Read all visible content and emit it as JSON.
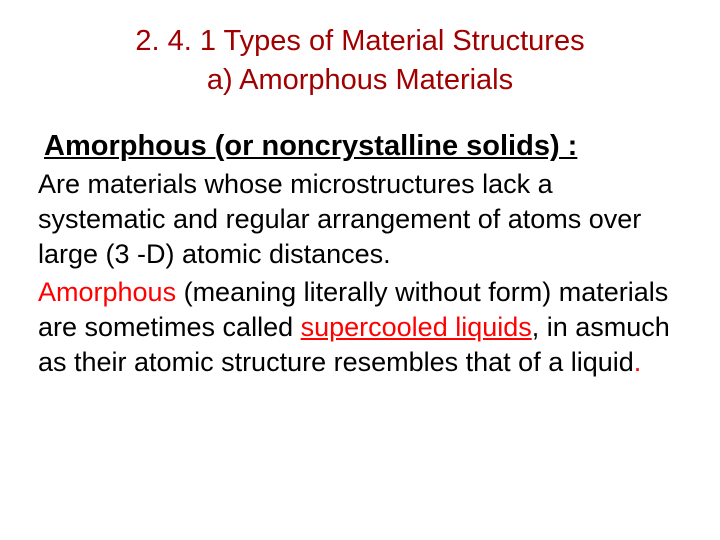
{
  "colors": {
    "title": "#a00000",
    "body": "#000000",
    "highlight": "#ff0000",
    "background": "#ffffff"
  },
  "typography": {
    "title_fontsize": 29,
    "heading_fontsize": 29,
    "body_fontsize": 27,
    "font_family": "Arial"
  },
  "title": {
    "line1": "2. 4. 1 Types of Material Structures",
    "line2": "a)  Amorphous Materials"
  },
  "heading": "Amorphous (or noncrystalline solids) :",
  "para1": {
    "text": "Are materials whose microstructures lack a systematic and regular arrangement of atoms over large (3 -D) atomic distances."
  },
  "para2": {
    "seg1": "Amorphous",
    "seg2": " (meaning literally without form) materials are sometimes called ",
    "seg3": "supercooled liquids",
    "seg4": ", in asmuch as their atomic structure resembles that of a liquid",
    "seg5": "."
  }
}
